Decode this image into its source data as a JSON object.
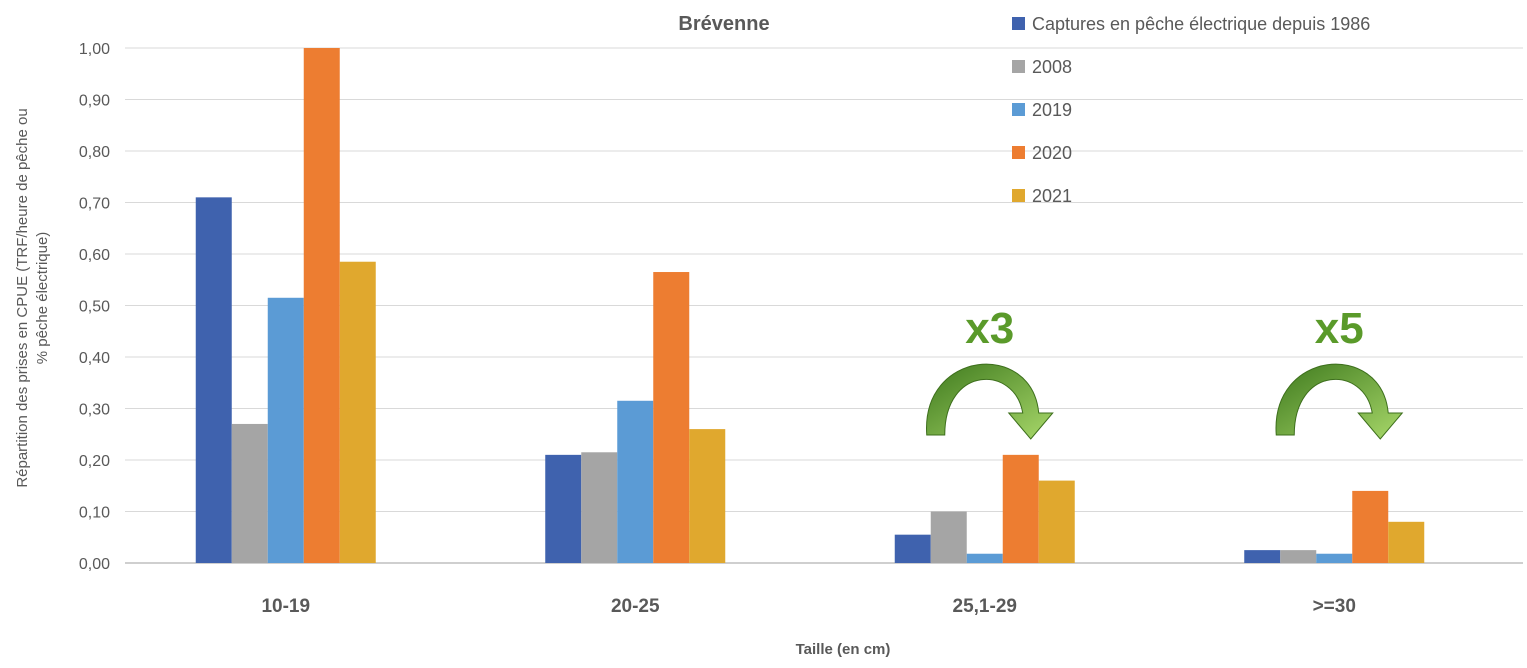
{
  "chart_data": {
    "type": "bar",
    "title": "Brévenne",
    "xlabel": "Taille (en cm)",
    "ylabel_lines": [
      "Répartition des prises en CPUE (TRF/heure de pêche ou",
      "% pêche électrique)"
    ],
    "ylim": [
      0,
      1.0
    ],
    "yticks": [
      "0,00",
      "0,10",
      "0,20",
      "0,30",
      "0,40",
      "0,50",
      "0,60",
      "0,70",
      "0,80",
      "0,90",
      "1,00"
    ],
    "grid": true,
    "legend_position": "top-right",
    "categories": [
      "10-19",
      "20-25",
      "25,1-29",
      ">=30"
    ],
    "series": [
      {
        "name": "Captures en pêche électrique depuis 1986",
        "color": "#3f62ae",
        "values": [
          0.71,
          0.21,
          0.055,
          0.025
        ]
      },
      {
        "name": "2008",
        "color": "#a5a5a5",
        "values": [
          0.27,
          0.215,
          0.1,
          0.025
        ]
      },
      {
        "name": "2019",
        "color": "#5b9bd5",
        "values": [
          0.515,
          0.315,
          0.018,
          0.018
        ]
      },
      {
        "name": "2020",
        "color": "#ed7d31",
        "values": [
          1.0,
          0.565,
          0.21,
          0.14
        ]
      },
      {
        "name": "2021",
        "color": "#e0a82e",
        "values": [
          0.585,
          0.26,
          0.16,
          0.08
        ]
      }
    ],
    "annotations": [
      {
        "text": "x3",
        "category": "25,1-29",
        "color": "#5a9a2a"
      },
      {
        "text": "x5",
        "category": ">=30",
        "color": "#5a9a2a"
      }
    ]
  }
}
